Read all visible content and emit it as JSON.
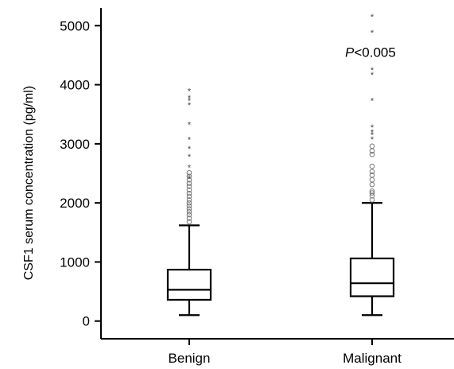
{
  "chart_data": {
    "type": "box",
    "ylabel": "CSF1 serum concentration (pg/ml)",
    "xlabel": "",
    "ylim": [
      -300,
      5300
    ],
    "yticks": [
      0,
      1000,
      2000,
      3000,
      4000,
      5000
    ],
    "categories": [
      "Benign",
      "Malignant"
    ],
    "boxes": [
      {
        "category": "Benign",
        "min": 100,
        "q1": 360,
        "median": 530,
        "q3": 870,
        "max": 1620,
        "outliers_circle": [
          1680,
          1740,
          1800,
          1850,
          1900,
          1950,
          2000,
          2050,
          2110,
          2160,
          2220,
          2280,
          2330,
          2390,
          2450,
          2510
        ],
        "outliers_star": [
          2420,
          2600,
          2780,
          2920,
          3070,
          3330,
          3660,
          3730,
          3780,
          3890
        ]
      },
      {
        "category": "Malignant",
        "min": 100,
        "q1": 420,
        "median": 640,
        "q3": 1060,
        "max": 2000,
        "outliers_circle": [
          2050,
          2120,
          2170,
          2200,
          2310,
          2390,
          2470,
          2530,
          2620,
          2820,
          2880,
          2960
        ],
        "outliers_star": [
          3080,
          3150,
          3200,
          3280,
          3730,
          4170,
          4250,
          4880,
          5150
        ]
      }
    ],
    "annotation": {
      "p_symbol": "P",
      "p_rest": "<0.005",
      "category": "Malignant",
      "y": 4550
    }
  }
}
